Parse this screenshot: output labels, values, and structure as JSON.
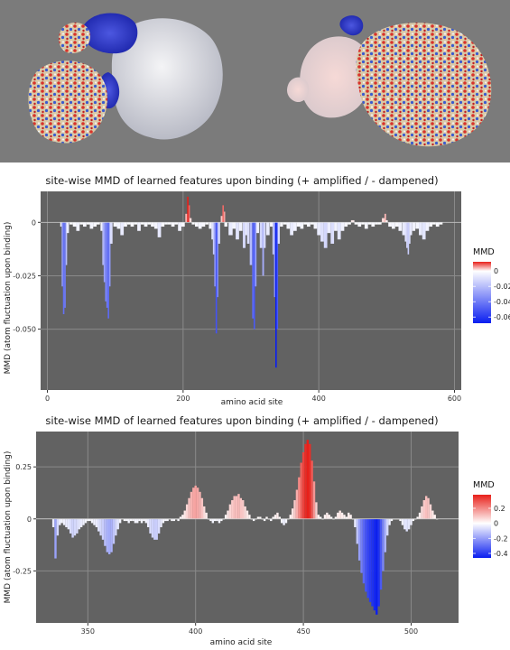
{
  "structure_panel": {
    "images": [
      "protein-complex-surface-left",
      "protein-complex-surface-right"
    ],
    "background": "#7b7b7b"
  },
  "colors": {
    "panel_bg": "#626262",
    "grid": "#8a8a8a",
    "positive": "#e8201a",
    "neutral": "#ffffff",
    "negative": "#0a1ef0"
  },
  "chart_data": [
    {
      "type": "bar",
      "title": "site-wise MMD of learned features upon binding  (+ amplified / - dampened)",
      "xlabel": "amino acid site",
      "ylabel": "MMD (atom fluctuation upon binding)",
      "xlim": [
        -10,
        610
      ],
      "ylim": [
        -0.0785,
        0.0145
      ],
      "x_ticks": [
        0,
        200,
        400,
        600
      ],
      "x_tick_labels": [
        "0",
        "200",
        "400",
        "600"
      ],
      "y_ticks": [
        0,
        -0.025,
        -0.05
      ],
      "y_tick_labels": [
        "0",
        "-0.025",
        "-0.050"
      ],
      "grid": true,
      "legend": {
        "title": "MMD",
        "position": "right",
        "range": [
          -0.068,
          0.012
        ],
        "tick_values": [
          0,
          -0.02,
          -0.04,
          -0.06
        ],
        "tick_labels": [
          "0",
          "-0.02",
          "-0.04",
          "-0.06"
        ]
      },
      "points": [
        [
          20,
          -0.002
        ],
        [
          22,
          -0.03
        ],
        [
          24,
          -0.043
        ],
        [
          26,
          -0.04
        ],
        [
          28,
          -0.02
        ],
        [
          30,
          -0.005
        ],
        [
          35,
          -0.001
        ],
        [
          40,
          -0.002
        ],
        [
          45,
          -0.004
        ],
        [
          50,
          -0.001
        ],
        [
          55,
          -0.002
        ],
        [
          60,
          -0.001
        ],
        [
          65,
          -0.003
        ],
        [
          70,
          -0.002
        ],
        [
          75,
          -0.001
        ],
        [
          80,
          -0.004
        ],
        [
          82,
          -0.02
        ],
        [
          84,
          -0.028
        ],
        [
          86,
          -0.037
        ],
        [
          88,
          -0.04
        ],
        [
          90,
          -0.045
        ],
        [
          92,
          -0.03
        ],
        [
          94,
          -0.01
        ],
        [
          100,
          -0.002
        ],
        [
          105,
          -0.003
        ],
        [
          110,
          -0.006
        ],
        [
          115,
          -0.002
        ],
        [
          120,
          -0.001
        ],
        [
          125,
          -0.002
        ],
        [
          130,
          -0.001
        ],
        [
          135,
          -0.004
        ],
        [
          140,
          -0.001
        ],
        [
          145,
          -0.002
        ],
        [
          150,
          -0.001
        ],
        [
          155,
          -0.002
        ],
        [
          160,
          -0.003
        ],
        [
          165,
          -0.007
        ],
        [
          170,
          -0.002
        ],
        [
          175,
          -0.001
        ],
        [
          180,
          -0.001
        ],
        [
          185,
          -0.002
        ],
        [
          190,
          -0.001
        ],
        [
          195,
          -0.004
        ],
        [
          200,
          -0.002
        ],
        [
          205,
          0.004
        ],
        [
          207,
          0.012
        ],
        [
          209,
          0.008
        ],
        [
          211,
          0.002
        ],
        [
          215,
          -0.001
        ],
        [
          220,
          -0.002
        ],
        [
          225,
          -0.003
        ],
        [
          230,
          -0.002
        ],
        [
          235,
          -0.001
        ],
        [
          240,
          -0.003
        ],
        [
          243,
          -0.008
        ],
        [
          245,
          -0.015
        ],
        [
          247,
          -0.03
        ],
        [
          249,
          -0.052
        ],
        [
          251,
          -0.035
        ],
        [
          253,
          -0.01
        ],
        [
          257,
          0.003
        ],
        [
          259,
          0.008
        ],
        [
          261,
          0.005
        ],
        [
          263,
          -0.002
        ],
        [
          270,
          -0.006
        ],
        [
          275,
          -0.003
        ],
        [
          280,
          -0.008
        ],
        [
          285,
          -0.004
        ],
        [
          290,
          -0.012
        ],
        [
          293,
          -0.006
        ],
        [
          296,
          -0.01
        ],
        [
          300,
          -0.02
        ],
        [
          303,
          -0.045
        ],
        [
          305,
          -0.05
        ],
        [
          307,
          -0.03
        ],
        [
          310,
          -0.005
        ],
        [
          315,
          -0.012
        ],
        [
          318,
          -0.025
        ],
        [
          320,
          -0.012
        ],
        [
          325,
          -0.006
        ],
        [
          330,
          -0.002
        ],
        [
          333,
          -0.015
        ],
        [
          335,
          -0.035
        ],
        [
          337,
          -0.068
        ],
        [
          339,
          -0.05
        ],
        [
          341,
          -0.01
        ],
        [
          345,
          -0.002
        ],
        [
          350,
          -0.001
        ],
        [
          355,
          -0.003
        ],
        [
          360,
          -0.006
        ],
        [
          365,
          -0.004
        ],
        [
          370,
          -0.002
        ],
        [
          375,
          -0.003
        ],
        [
          380,
          -0.001
        ],
        [
          385,
          -0.002
        ],
        [
          390,
          -0.001
        ],
        [
          395,
          -0.003
        ],
        [
          400,
          -0.006
        ],
        [
          405,
          -0.009
        ],
        [
          410,
          -0.012
        ],
        [
          415,
          -0.005
        ],
        [
          420,
          -0.01
        ],
        [
          425,
          -0.004
        ],
        [
          430,
          -0.008
        ],
        [
          435,
          -0.004
        ],
        [
          440,
          -0.002
        ],
        [
          445,
          -0.001
        ],
        [
          450,
          0.001
        ],
        [
          455,
          -0.001
        ],
        [
          460,
          -0.002
        ],
        [
          465,
          -0.001
        ],
        [
          470,
          -0.003
        ],
        [
          475,
          -0.001
        ],
        [
          480,
          -0.002
        ],
        [
          485,
          -0.001
        ],
        [
          490,
          -0.001
        ],
        [
          495,
          0.002
        ],
        [
          498,
          0.004
        ],
        [
          500,
          0.001
        ],
        [
          505,
          -0.002
        ],
        [
          510,
          -0.003
        ],
        [
          515,
          -0.002
        ],
        [
          520,
          -0.004
        ],
        [
          525,
          -0.006
        ],
        [
          528,
          -0.009
        ],
        [
          530,
          -0.012
        ],
        [
          532,
          -0.015
        ],
        [
          534,
          -0.01
        ],
        [
          536,
          -0.006
        ],
        [
          540,
          -0.004
        ],
        [
          545,
          -0.003
        ],
        [
          550,
          -0.006
        ],
        [
          555,
          -0.008
        ],
        [
          560,
          -0.004
        ],
        [
          565,
          -0.002
        ],
        [
          570,
          -0.001
        ],
        [
          575,
          -0.002
        ],
        [
          580,
          -0.001
        ]
      ]
    },
    {
      "type": "bar",
      "title": "site-wise MMD of learned features upon binding  (+ amplified / - dampened)",
      "xlabel": "amino acid site",
      "ylabel": "MMD (atom fluctuation upon binding)",
      "xlim": [
        326,
        522
      ],
      "ylim": [
        -0.5,
        0.42
      ],
      "x_ticks": [
        350,
        400,
        450,
        500
      ],
      "x_tick_labels": [
        "350",
        "400",
        "450",
        "500"
      ],
      "y_ticks": [
        0.25,
        0,
        -0.25
      ],
      "y_tick_labels": [
        "0.25",
        "0",
        "-0.25"
      ],
      "grid": true,
      "legend": {
        "title": "MMD",
        "position": "right",
        "range": [
          -0.46,
          0.38
        ],
        "tick_values": [
          0.2,
          0,
          -0.2,
          -0.4
        ],
        "tick_labels": [
          "0.2",
          "0",
          "-0.2",
          "-0.4"
        ]
      },
      "points": [
        [
          334,
          -0.04
        ],
        [
          335,
          -0.19
        ],
        [
          336,
          -0.08
        ],
        [
          337,
          -0.03
        ],
        [
          338,
          -0.02
        ],
        [
          339,
          -0.03
        ],
        [
          340,
          -0.04
        ],
        [
          341,
          -0.05
        ],
        [
          342,
          -0.07
        ],
        [
          343,
          -0.09
        ],
        [
          344,
          -0.08
        ],
        [
          345,
          -0.07
        ],
        [
          346,
          -0.05
        ],
        [
          347,
          -0.04
        ],
        [
          348,
          -0.03
        ],
        [
          349,
          -0.02
        ],
        [
          350,
          -0.01
        ],
        [
          351,
          -0.01
        ],
        [
          352,
          -0.02
        ],
        [
          353,
          -0.03
        ],
        [
          354,
          -0.04
        ],
        [
          355,
          -0.06
        ],
        [
          356,
          -0.08
        ],
        [
          357,
          -0.1
        ],
        [
          358,
          -0.13
        ],
        [
          359,
          -0.16
        ],
        [
          360,
          -0.17
        ],
        [
          361,
          -0.16
        ],
        [
          362,
          -0.12
        ],
        [
          363,
          -0.08
        ],
        [
          364,
          -0.05
        ],
        [
          365,
          -0.02
        ],
        [
          366,
          0.0
        ],
        [
          367,
          -0.01
        ],
        [
          368,
          -0.01
        ],
        [
          369,
          -0.02
        ],
        [
          370,
          -0.01
        ],
        [
          371,
          -0.01
        ],
        [
          372,
          -0.02
        ],
        [
          373,
          -0.02
        ],
        [
          374,
          -0.01
        ],
        [
          375,
          -0.02
        ],
        [
          376,
          -0.01
        ],
        [
          377,
          -0.02
        ],
        [
          378,
          -0.04
        ],
        [
          379,
          -0.07
        ],
        [
          380,
          -0.09
        ],
        [
          381,
          -0.1
        ],
        [
          382,
          -0.1
        ],
        [
          383,
          -0.07
        ],
        [
          384,
          -0.04
        ],
        [
          385,
          -0.02
        ],
        [
          386,
          -0.01
        ],
        [
          387,
          -0.01
        ],
        [
          388,
          0.0
        ],
        [
          389,
          -0.01
        ],
        [
          390,
          -0.01
        ],
        [
          391,
          0.0
        ],
        [
          392,
          -0.01
        ],
        [
          393,
          0.01
        ],
        [
          394,
          0.02
        ],
        [
          395,
          0.04
        ],
        [
          396,
          0.07
        ],
        [
          397,
          0.1
        ],
        [
          398,
          0.13
        ],
        [
          399,
          0.15
        ],
        [
          400,
          0.16
        ],
        [
          401,
          0.15
        ],
        [
          402,
          0.13
        ],
        [
          403,
          0.1
        ],
        [
          404,
          0.06
        ],
        [
          405,
          0.03
        ],
        [
          406,
          0.0
        ],
        [
          407,
          -0.01
        ],
        [
          408,
          -0.02
        ],
        [
          409,
          -0.01
        ],
        [
          410,
          -0.01
        ],
        [
          411,
          -0.02
        ],
        [
          412,
          -0.01
        ],
        [
          413,
          0.0
        ],
        [
          414,
          0.02
        ],
        [
          415,
          0.04
        ],
        [
          416,
          0.07
        ],
        [
          417,
          0.09
        ],
        [
          418,
          0.11
        ],
        [
          419,
          0.11
        ],
        [
          420,
          0.12
        ],
        [
          421,
          0.1
        ],
        [
          422,
          0.09
        ],
        [
          423,
          0.06
        ],
        [
          424,
          0.04
        ],
        [
          425,
          0.02
        ],
        [
          426,
          0.0
        ],
        [
          427,
          -0.01
        ],
        [
          428,
          0.0
        ],
        [
          429,
          0.01
        ],
        [
          430,
          0.01
        ],
        [
          431,
          0.0
        ],
        [
          432,
          -0.01
        ],
        [
          433,
          0.01
        ],
        [
          434,
          0.0
        ],
        [
          435,
          -0.01
        ],
        [
          436,
          0.01
        ],
        [
          437,
          0.02
        ],
        [
          438,
          0.03
        ],
        [
          439,
          0.01
        ],
        [
          440,
          -0.02
        ],
        [
          441,
          -0.03
        ],
        [
          442,
          -0.02
        ],
        [
          443,
          0.0
        ],
        [
          444,
          0.02
        ],
        [
          445,
          0.05
        ],
        [
          446,
          0.09
        ],
        [
          447,
          0.14
        ],
        [
          448,
          0.2
        ],
        [
          449,
          0.27
        ],
        [
          450,
          0.32
        ],
        [
          451,
          0.36
        ],
        [
          452,
          0.38
        ],
        [
          453,
          0.36
        ],
        [
          454,
          0.28
        ],
        [
          455,
          0.18
        ],
        [
          456,
          0.08
        ],
        [
          457,
          0.02
        ],
        [
          458,
          0.01
        ],
        [
          459,
          0.0
        ],
        [
          460,
          0.02
        ],
        [
          461,
          0.03
        ],
        [
          462,
          0.02
        ],
        [
          463,
          0.01
        ],
        [
          464,
          0.0
        ],
        [
          465,
          0.01
        ],
        [
          466,
          0.03
        ],
        [
          467,
          0.04
        ],
        [
          468,
          0.03
        ],
        [
          469,
          0.02
        ],
        [
          470,
          0.01
        ],
        [
          471,
          0.03
        ],
        [
          472,
          0.02
        ],
        [
          473,
          0.0
        ],
        [
          474,
          -0.04
        ],
        [
          475,
          -0.12
        ],
        [
          476,
          -0.2
        ],
        [
          477,
          -0.26
        ],
        [
          478,
          -0.31
        ],
        [
          479,
          -0.35
        ],
        [
          480,
          -0.38
        ],
        [
          481,
          -0.4
        ],
        [
          482,
          -0.42
        ],
        [
          483,
          -0.44
        ],
        [
          484,
          -0.46
        ],
        [
          485,
          -0.42
        ],
        [
          486,
          -0.34
        ],
        [
          487,
          -0.25
        ],
        [
          488,
          -0.16
        ],
        [
          489,
          -0.08
        ],
        [
          490,
          -0.03
        ],
        [
          491,
          -0.01
        ],
        [
          492,
          0.0
        ],
        [
          493,
          0.0
        ],
        [
          494,
          0.0
        ],
        [
          495,
          -0.01
        ],
        [
          496,
          -0.03
        ],
        [
          497,
          -0.05
        ],
        [
          498,
          -0.06
        ],
        [
          499,
          -0.05
        ],
        [
          500,
          -0.03
        ],
        [
          501,
          -0.01
        ],
        [
          502,
          0.0
        ],
        [
          503,
          0.01
        ],
        [
          504,
          0.03
        ],
        [
          505,
          0.06
        ],
        [
          506,
          0.09
        ],
        [
          507,
          0.11
        ],
        [
          508,
          0.1
        ],
        [
          509,
          0.07
        ],
        [
          510,
          0.04
        ],
        [
          511,
          0.02
        ],
        [
          512,
          0.0
        ]
      ]
    }
  ]
}
